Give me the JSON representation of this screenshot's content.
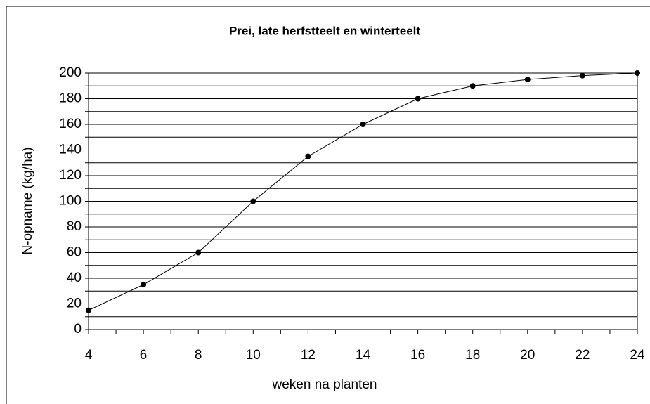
{
  "chart_data": {
    "type": "line",
    "title": "Prei, late herfstteelt en winterteelt",
    "x_label": "weken na planten",
    "y_label": "N-opname (kg/ha)",
    "x": [
      4,
      6,
      8,
      10,
      12,
      14,
      16,
      18,
      20,
      22,
      24
    ],
    "series": [
      {
        "name": "N-opname",
        "color": "#000000",
        "values": [
          15,
          35,
          60,
          100,
          135,
          160,
          180,
          190,
          195,
          198,
          200
        ]
      }
    ],
    "xlim": [
      4,
      24
    ],
    "xticks": [
      4,
      6,
      8,
      10,
      12,
      14,
      16,
      18,
      20,
      22,
      24
    ],
    "minor_xticks": [
      5,
      7,
      9,
      11,
      13,
      15,
      17,
      19,
      21,
      23
    ],
    "ylim": [
      0,
      200
    ],
    "yticks": [
      0,
      20,
      40,
      60,
      80,
      100,
      120,
      140,
      160,
      180,
      200
    ],
    "minor_yticks": [
      10,
      30,
      50,
      70,
      90,
      110,
      130,
      150,
      170,
      190
    ],
    "grid": true
  }
}
